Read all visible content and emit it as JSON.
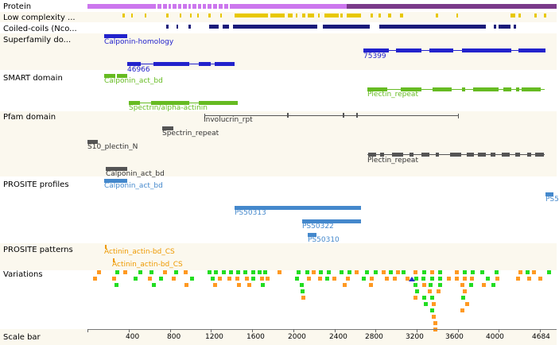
{
  "colors": {
    "protein_light": "#cc77ee",
    "protein_dark": "#7a3a8a",
    "low_complexity": "#e8c800",
    "coil": "#1a1a7a",
    "superfamily": "#2222cc",
    "smart": "#66bb22",
    "pfam": "#555555",
    "prosite_profile": "#4488cc",
    "prosite_pattern": "#ee9900",
    "var_green": "#22dd22",
    "var_orange": "#ff9922",
    "var_blue": "#2233cc",
    "row_tint": "#fbf8ee"
  },
  "tracks": [
    {
      "label": "Protein"
    },
    {
      "label": "Low complexity ..."
    },
    {
      "label": "Coiled-coils (Nco..."
    },
    {
      "label": "Superfamily do..."
    },
    {
      "label": "SMART domain"
    },
    {
      "label": "Pfam domain"
    },
    {
      "label": "PROSITE profiles"
    },
    {
      "label": "PROSITE patterns"
    },
    {
      "label": "Variations"
    },
    {
      "label": "Scale bar"
    }
  ],
  "features": {
    "superfamily": [
      "Calponin-homology",
      "46966",
      "75399"
    ],
    "smart": [
      "Calponin_act_bd",
      "Spectrin/alpha-actinin",
      "Plectin_repeat"
    ],
    "pfam": [
      "Involucrin_rpt",
      "Spectrin_repeat",
      "S10_plectin_N",
      "Calponin_act_bd",
      "Plectin_repeat"
    ],
    "prosite_profiles": [
      "Calponin_act_bd",
      "PS50313",
      "PS50322",
      "PS50310",
      "PS5"
    ],
    "prosite_patterns": [
      "Actinin_actin-bd_CS",
      "Actinin_actin-bd_CS"
    ]
  },
  "scale": {
    "ticks": [
      "400",
      "800",
      "1200",
      "1600",
      "2000",
      "2400",
      "2800",
      "3200",
      "3600",
      "4000",
      "4684"
    ]
  }
}
